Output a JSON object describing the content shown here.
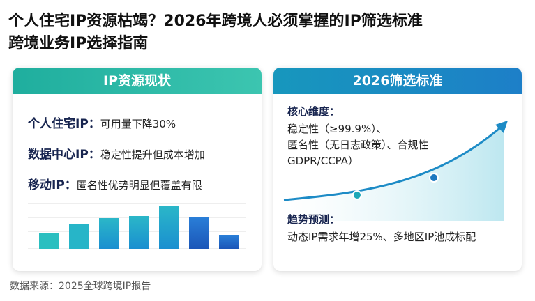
{
  "header": {
    "title_line1": "个人住宅IP资源枯竭？2026年跨境人必须掌握的IP筛选标准",
    "title_line2": "跨境业务IP选择指南"
  },
  "left": {
    "title": "IP资源现状",
    "items": [
      {
        "label": "个人住宅IP：",
        "text": "可用量下降30%"
      },
      {
        "label": "数据中心IP：",
        "text": "稳定性提升但成本增加"
      },
      {
        "label": "移动IP：",
        "text": "匿名性优势明显但覆盖有限"
      }
    ]
  },
  "right": {
    "title": "2026筛选标准",
    "core": {
      "label": "核心维度：",
      "lines": [
        "稳定性（≥99.9%）、",
        "匿名性（无日志政策）、合规性",
        "GDPR/CCPA）"
      ]
    },
    "trend": {
      "label": "趋势预测：",
      "text": "动态IP需求年增25%、多地区IP池成标配"
    }
  },
  "source": "数据来源：2025全球跨境IP报告"
}
